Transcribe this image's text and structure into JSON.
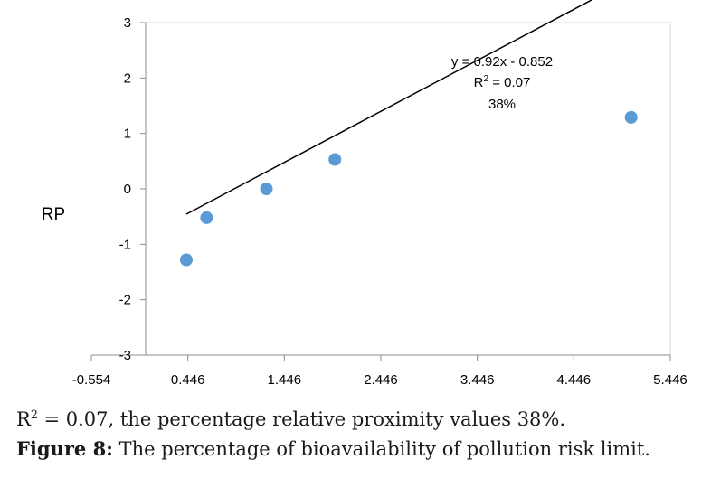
{
  "chart_data": {
    "type": "scatter",
    "ylabel": "RP",
    "xlabel": "",
    "title": "",
    "xlim": [
      -0.554,
      5.446
    ],
    "ylim": [
      -3,
      3
    ],
    "x_ticks": [
      "-0.554",
      "0.446",
      "1.446",
      "2.446",
      "3.446",
      "4.446",
      "5.446"
    ],
    "y_ticks": [
      "3",
      "2",
      "1",
      "0",
      "-1",
      "-2",
      "-3"
    ],
    "points": [
      {
        "x": 0.43,
        "y": -1.28
      },
      {
        "x": 0.64,
        "y": -0.52
      },
      {
        "x": 1.26,
        "y": 0.0
      },
      {
        "x": 1.97,
        "y": 0.53
      },
      {
        "x": 5.04,
        "y": 1.29
      }
    ],
    "trendline": {
      "slope": 0.92,
      "intercept": -0.852,
      "x_range": [
        0.43,
        5.04
      ]
    },
    "annotation": {
      "equation": "y = 0.92x - 0.852",
      "r2_prefix": "R",
      "r2_sup": "2",
      "r2_suffix": " = 0.07",
      "percent": "38%"
    },
    "grid": false,
    "colors": {
      "point": "#5b9bd5",
      "trendline": "#000000",
      "axis": "#8c8c8c"
    }
  },
  "caption": {
    "line1_prefix": "R",
    "line1_sup": "2",
    "line1_suffix": " = 0.07, the percentage relative proximity values 38%.",
    "figure_label": "Figure 8:",
    "figure_text": " The percentage of bioavailability of pollution risk limit."
  }
}
